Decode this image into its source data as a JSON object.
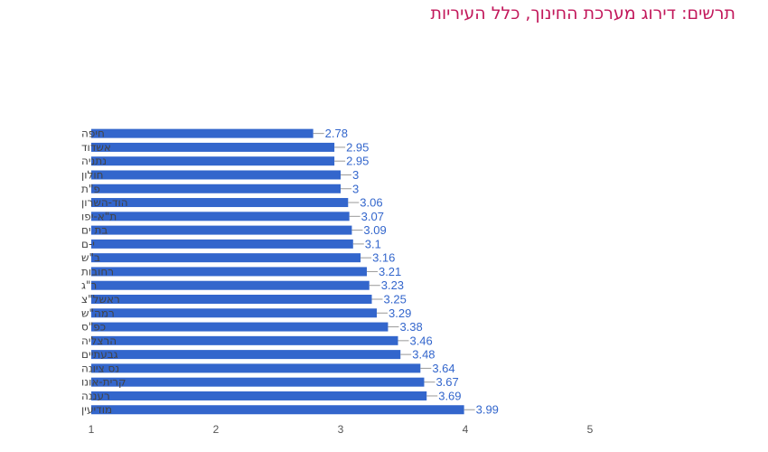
{
  "chart_data": {
    "type": "bar",
    "orientation": "horizontal",
    "title": "תרשים: דירוג מערכת החינוך, כלל העיריות",
    "categories": [
      "חיפה",
      "אשדוד",
      "נתניה",
      "חולון",
      "פ\"ת",
      "הוד-השרון",
      "ת\"א-יפו",
      "בת ים",
      "י-ם",
      "ב\"ש",
      "רחובות",
      "ר\"ג",
      "ראשל\"צ",
      "רמה\"ש",
      "כפ\"ס",
      "הרצליה",
      "גבעתיים",
      "נס ציונה",
      "קרית-אונו",
      "רעננה",
      "מודיעין"
    ],
    "values": [
      2.78,
      2.95,
      2.95,
      3,
      3,
      3.06,
      3.07,
      3.09,
      3.1,
      3.16,
      3.21,
      3.23,
      3.25,
      3.29,
      3.38,
      3.46,
      3.48,
      3.64,
      3.67,
      3.69,
      3.99
    ],
    "value_labels": [
      "2.78",
      "2.95",
      "2.95",
      "3",
      "3",
      "3.06",
      "3.07",
      "3.09",
      "3.1",
      "3.16",
      "3.21",
      "3.23",
      "3.25",
      "3.29",
      "3.38",
      "3.46",
      "3.48",
      "3.64",
      "3.67",
      "3.69",
      "3.99"
    ],
    "xlim": [
      1,
      5
    ],
    "xticks": [
      1,
      2,
      3,
      4,
      5
    ],
    "xtick_labels": [
      "1",
      "2",
      "3",
      "4",
      "5"
    ],
    "grid": false,
    "legend": "none",
    "bar_color": "#3366cc",
    "title_color": "#c2185b"
  }
}
